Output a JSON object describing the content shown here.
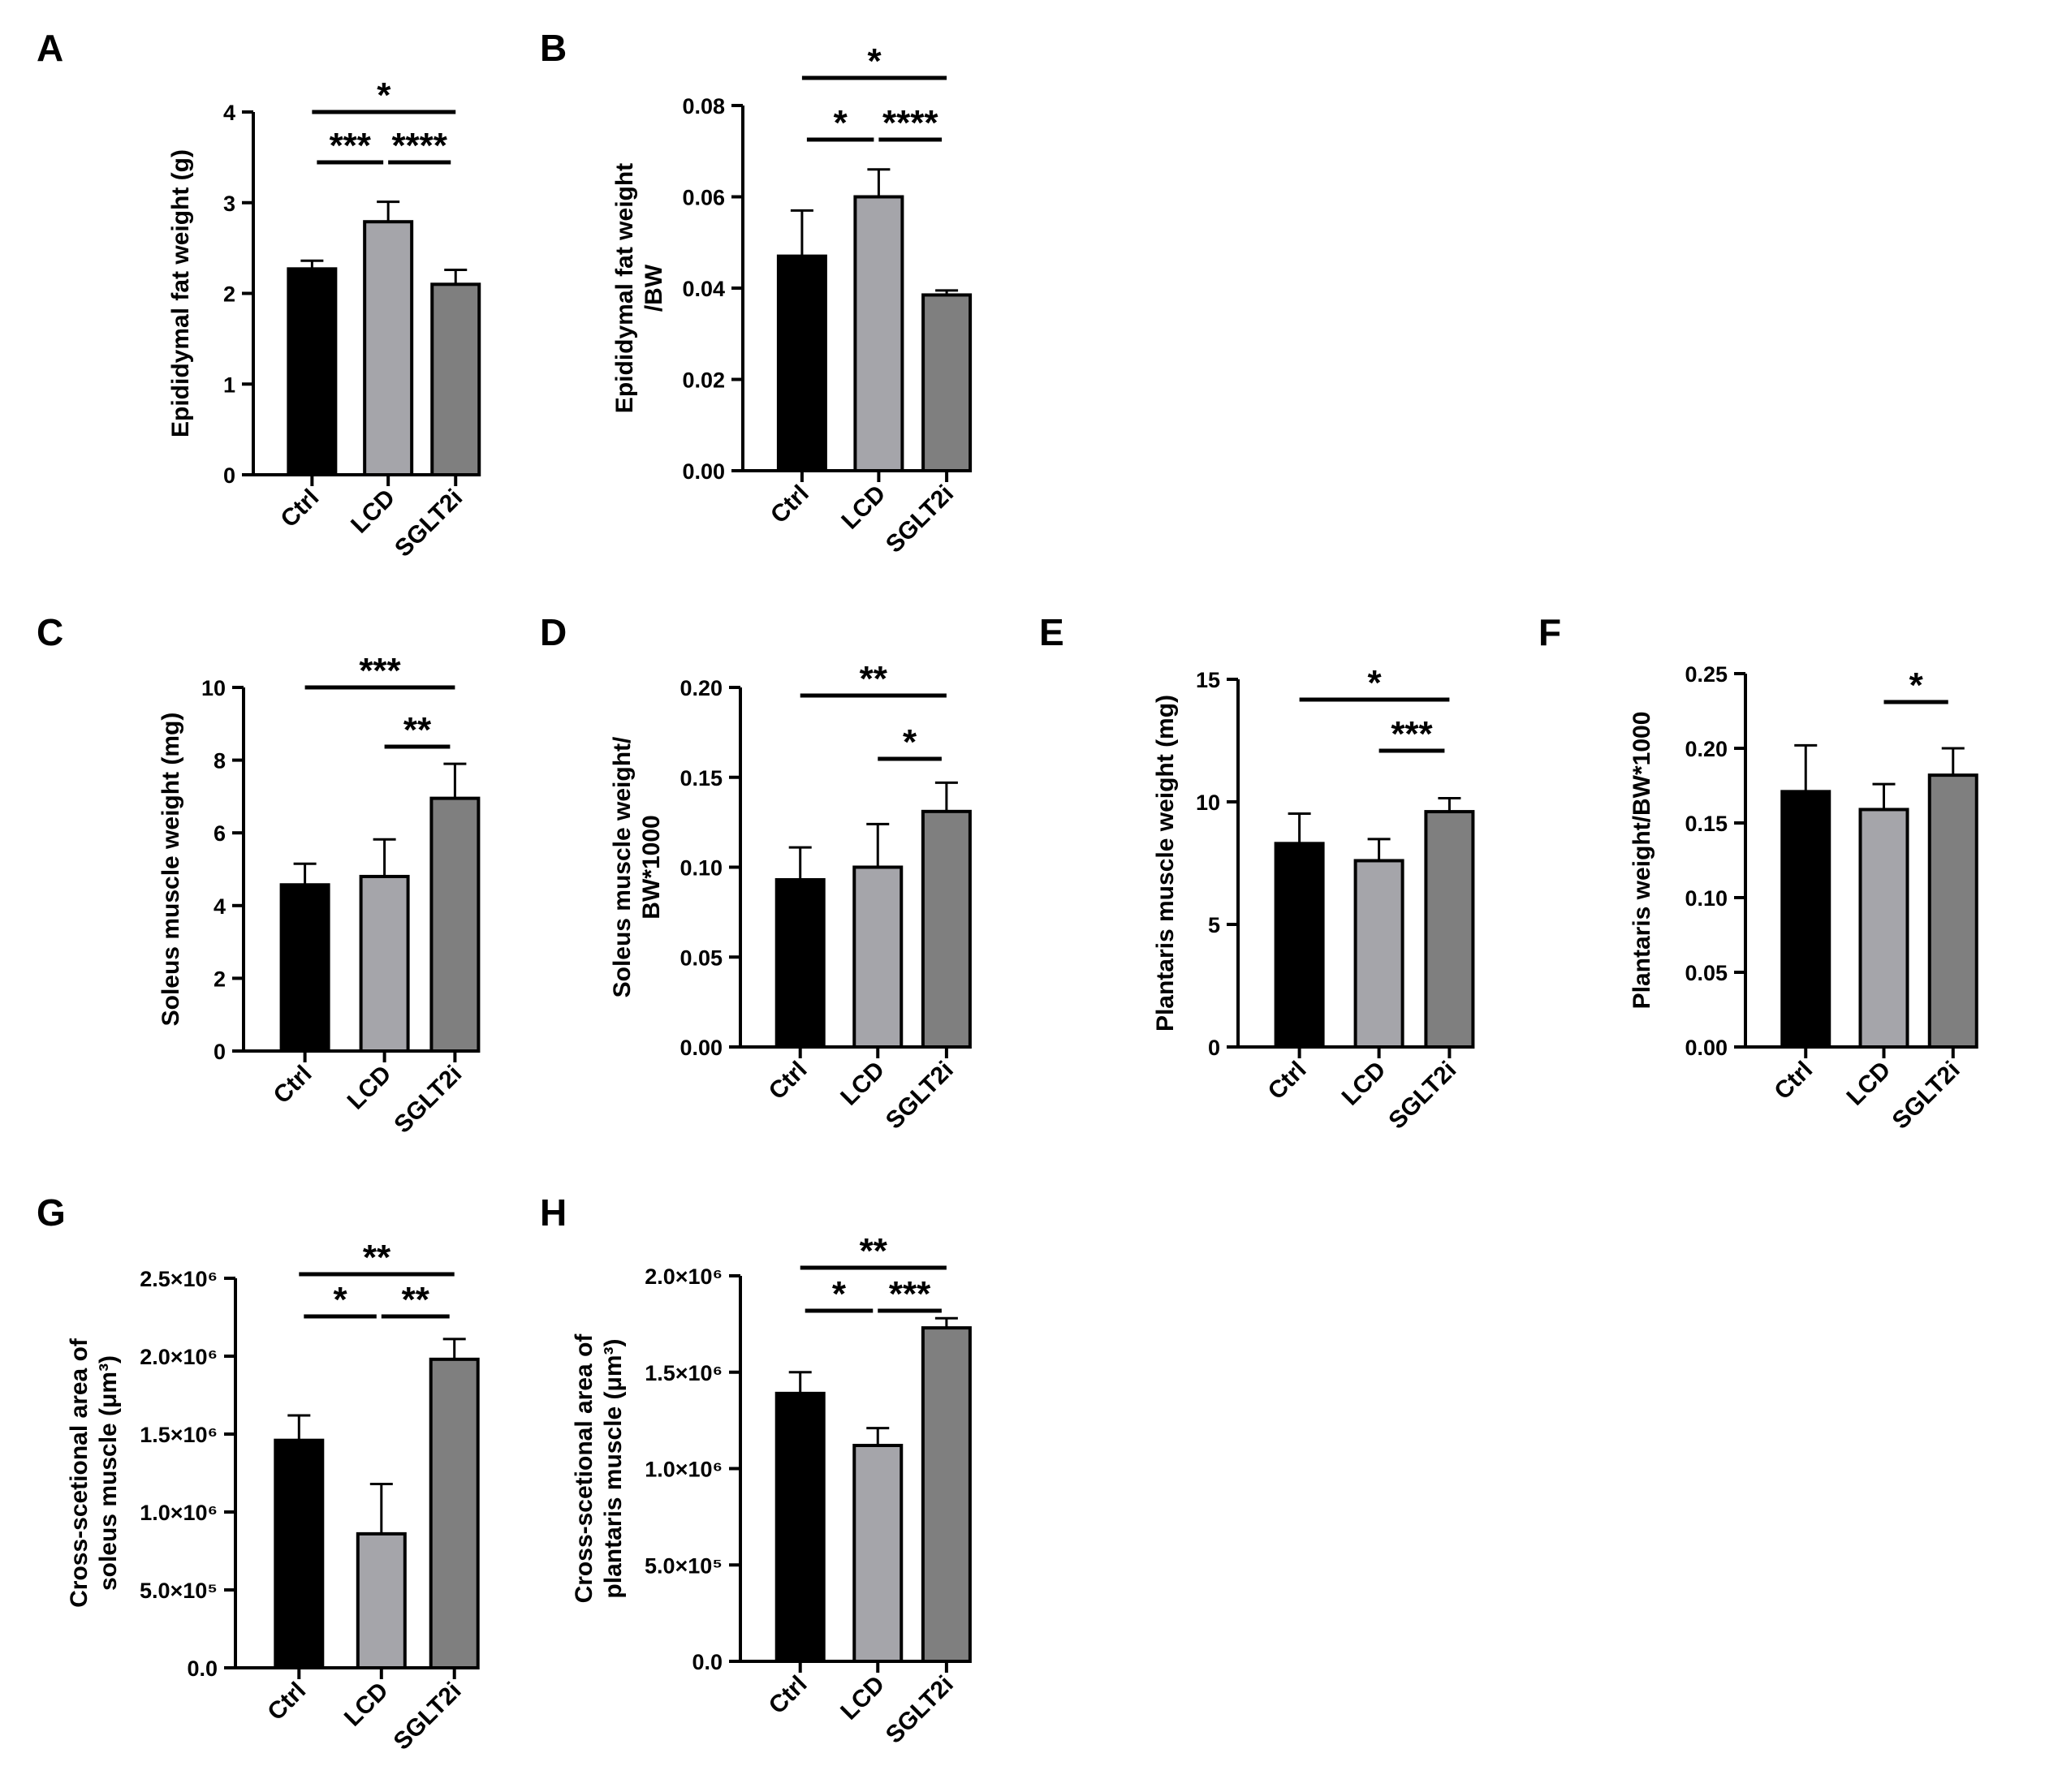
{
  "figure": {
    "categories": [
      "Ctrl",
      "LCD",
      "SGLT2i"
    ],
    "bar_colors": [
      "#000000",
      "#a5a5aa",
      "#7f7f7f"
    ]
  },
  "chart_data": [
    {
      "panel": "A",
      "type": "bar",
      "ylabel": [
        "Epididymal fat weight (g)"
      ],
      "categories": [
        "Ctrl",
        "LCD",
        "SGLT2i"
      ],
      "values": [
        2.27,
        2.79,
        2.1
      ],
      "errors": [
        0.09,
        0.22,
        0.16
      ],
      "ylim": [
        0,
        4
      ],
      "ticks": [
        0,
        1,
        2,
        3,
        4
      ],
      "tick_labels": [
        "0",
        "1",
        "2",
        "3",
        "4"
      ],
      "significance": [
        {
          "from": 0,
          "to": 1,
          "label": "***"
        },
        {
          "from": 1,
          "to": 2,
          "label": "****"
        },
        {
          "from": 0,
          "to": 2,
          "label": "*"
        }
      ]
    },
    {
      "panel": "B",
      "type": "bar",
      "ylabel": [
        "Epididymal fat weight",
        "/BW"
      ],
      "categories": [
        "Ctrl",
        "LCD",
        "SGLT2i"
      ],
      "values": [
        0.047,
        0.06,
        0.0385
      ],
      "errors": [
        0.01,
        0.006,
        0.001
      ],
      "ylim": [
        0,
        0.08
      ],
      "ticks": [
        0,
        0.02,
        0.04,
        0.06,
        0.08
      ],
      "tick_labels": [
        "0.00",
        "0.02",
        "0.04",
        "0.06",
        "0.08"
      ],
      "significance": [
        {
          "from": 0,
          "to": 1,
          "label": "*"
        },
        {
          "from": 1,
          "to": 2,
          "label": "****"
        },
        {
          "from": 0,
          "to": 2,
          "label": "*"
        }
      ]
    },
    {
      "panel": "C",
      "type": "bar",
      "ylabel": [
        "Soleus muscle weight (mg)"
      ],
      "categories": [
        "Ctrl",
        "LCD",
        "SGLT2i"
      ],
      "values": [
        4.57,
        4.8,
        6.95
      ],
      "errors": [
        0.58,
        1.02,
        0.95
      ],
      "ylim": [
        0,
        10
      ],
      "ticks": [
        0,
        2,
        4,
        6,
        8,
        10
      ],
      "tick_labels": [
        "0",
        "2",
        "4",
        "6",
        "8",
        "10"
      ],
      "significance": [
        {
          "from": 1,
          "to": 2,
          "label": "**"
        },
        {
          "from": 0,
          "to": 2,
          "label": "***"
        }
      ]
    },
    {
      "panel": "D",
      "type": "bar",
      "ylabel": [
        "Soleus muscle weight/",
        "BW*1000"
      ],
      "categories": [
        "Ctrl",
        "LCD",
        "SGLT2i"
      ],
      "values": [
        0.093,
        0.1,
        0.131
      ],
      "errors": [
        0.018,
        0.024,
        0.016
      ],
      "ylim": [
        0,
        0.2
      ],
      "ticks": [
        0,
        0.05,
        0.1,
        0.15,
        0.2
      ],
      "tick_labels": [
        "0.00",
        "0.05",
        "0.10",
        "0.15",
        "0.20"
      ],
      "significance": [
        {
          "from": 1,
          "to": 2,
          "label": "*"
        },
        {
          "from": 0,
          "to": 2,
          "label": "**"
        }
      ]
    },
    {
      "panel": "E",
      "type": "bar",
      "ylabel": [
        "Plantaris muscle weight (mg)"
      ],
      "categories": [
        "Ctrl",
        "LCD",
        "SGLT2i"
      ],
      "values": [
        8.3,
        7.6,
        9.6
      ],
      "errors": [
        1.22,
        0.88,
        0.55
      ],
      "ylim": [
        0,
        15
      ],
      "ticks": [
        0,
        5,
        10,
        15
      ],
      "tick_labels": [
        "0",
        "5",
        "10",
        "15"
      ],
      "significance": [
        {
          "from": 1,
          "to": 2,
          "label": "***"
        },
        {
          "from": 0,
          "to": 2,
          "label": "*"
        }
      ]
    },
    {
      "panel": "F",
      "type": "bar",
      "ylabel": [
        "Plantaris weight/BW*1000"
      ],
      "categories": [
        "Ctrl",
        "LCD",
        "SGLT2i"
      ],
      "values": [
        0.171,
        0.159,
        0.182
      ],
      "errors": [
        0.031,
        0.017,
        0.018
      ],
      "ylim": [
        0,
        0.25
      ],
      "ticks": [
        0,
        0.05,
        0.1,
        0.15,
        0.2,
        0.25
      ],
      "tick_labels": [
        "0.00",
        "0.05",
        "0.10",
        "0.15",
        "0.20",
        "0.25"
      ],
      "significance": [
        {
          "from": 1,
          "to": 2,
          "label": "*"
        }
      ]
    },
    {
      "panel": "G",
      "type": "bar",
      "ylabel": [
        "Cross-scetional area of",
        "soleus muscle (μm³)"
      ],
      "categories": [
        "Ctrl",
        "LCD",
        "SGLT2i"
      ],
      "values": [
        1460000,
        860000,
        1980000
      ],
      "errors": [
        160000,
        320000,
        130000
      ],
      "ylim": [
        0,
        2500000
      ],
      "ticks": [
        0,
        500000,
        1000000,
        1500000,
        2000000,
        2500000
      ],
      "tick_labels": [
        "0.0",
        "5.0×10⁵",
        "1.0×10⁶",
        "1.5×10⁶",
        "2.0×10⁶",
        "2.5×10⁶"
      ],
      "significance": [
        {
          "from": 0,
          "to": 1,
          "label": "*"
        },
        {
          "from": 1,
          "to": 2,
          "label": "**"
        },
        {
          "from": 0,
          "to": 2,
          "label": "**"
        }
      ]
    },
    {
      "panel": "H",
      "type": "bar",
      "ylabel": [
        "Cross-scetional area of",
        "plantaris muscle (μm³)"
      ],
      "categories": [
        "Ctrl",
        "LCD",
        "SGLT2i"
      ],
      "values": [
        1390000,
        1120000,
        1730000
      ],
      "errors": [
        110000,
        90000,
        50000
      ],
      "ylim": [
        0,
        2000000
      ],
      "ticks": [
        0,
        500000,
        1000000,
        1500000,
        2000000
      ],
      "tick_labels": [
        "0.0",
        "5.0×10⁵",
        "1.0×10⁶",
        "1.5×10⁶",
        "2.0×10⁶"
      ],
      "significance": [
        {
          "from": 0,
          "to": 1,
          "label": "*"
        },
        {
          "from": 1,
          "to": 2,
          "label": "***"
        },
        {
          "from": 0,
          "to": 2,
          "label": "**"
        }
      ]
    }
  ]
}
